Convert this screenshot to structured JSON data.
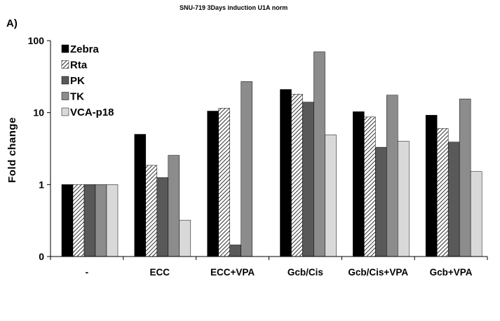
{
  "chart_data": {
    "type": "bar",
    "title": "SNU-719 3Days induction  U1A norm",
    "panel_label": "A)",
    "ylabel": "Fold  change",
    "xlabel": "",
    "yscale": "log",
    "ylim": [
      0.1,
      100
    ],
    "yticks": [
      {
        "value": 0.1,
        "label": "0"
      },
      {
        "value": 1,
        "label": "1"
      },
      {
        "value": 10,
        "label": "10"
      },
      {
        "value": 100,
        "label": "100"
      }
    ],
    "categories": [
      "-",
      "ECC",
      "ECC+VPA",
      "Gcb/Cis",
      "Gcb/Cis+VPA",
      "Gcb+VPA"
    ],
    "series": [
      {
        "name": "Zebra",
        "color": "#000000",
        "pattern": "solid",
        "values": [
          1.0,
          5.0,
          10.5,
          21.0,
          10.3,
          9.2
        ]
      },
      {
        "name": "Rta",
        "color": "#ffffff",
        "pattern": "hatch",
        "values": [
          1.0,
          1.85,
          11.5,
          18.0,
          8.7,
          6.0
        ]
      },
      {
        "name": "PK",
        "color": "#595959",
        "pattern": "solid",
        "values": [
          1.0,
          1.25,
          0.145,
          14.0,
          3.3,
          3.9
        ]
      },
      {
        "name": "TK",
        "color": "#8c8c8c",
        "pattern": "solid",
        "values": [
          1.0,
          2.55,
          27.0,
          70.0,
          17.5,
          15.5
        ]
      },
      {
        "name": "VCA-p18",
        "color": "#d9d9d9",
        "pattern": "solid",
        "values": [
          1.0,
          0.32,
          null,
          4.9,
          4.0,
          1.52
        ]
      }
    ],
    "legend_position": "top-left",
    "grid": false
  }
}
